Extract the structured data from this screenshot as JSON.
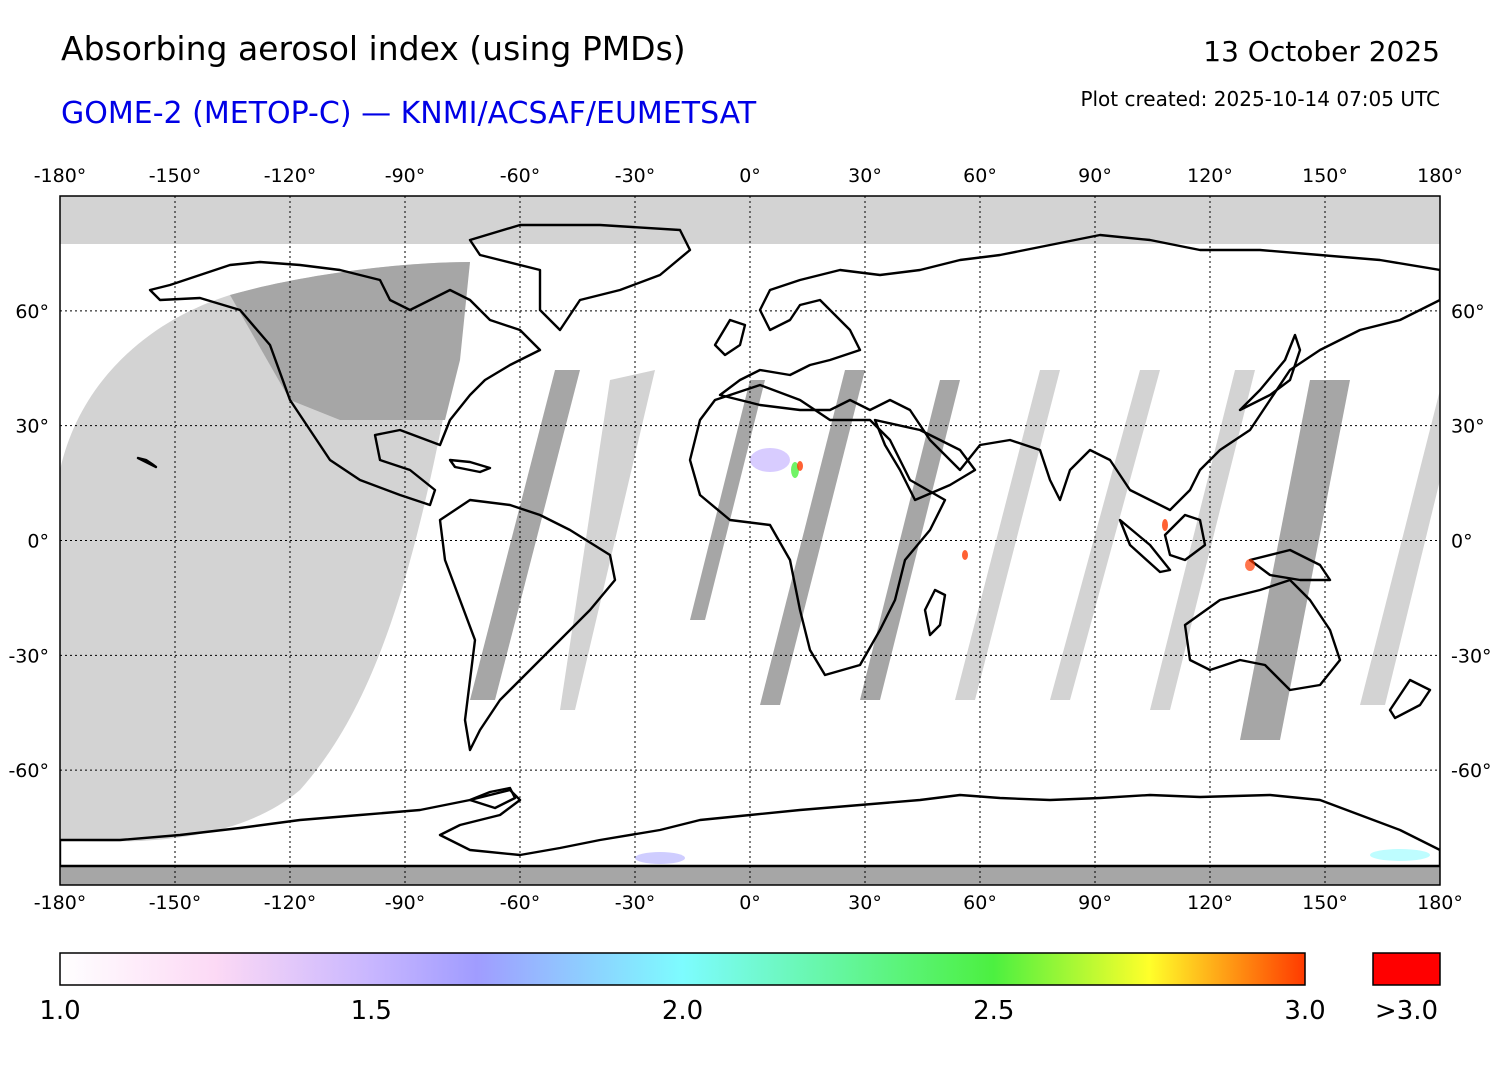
{
  "header": {
    "title": "Absorbing aerosol index (using PMDs)",
    "subtitle": "GOME-2 (METOP-C) — KNMI/ACSAF/EUMETSAT",
    "date": "13 October 2025",
    "created": "Plot created: 2025-10-14 07:05 UTC"
  },
  "map": {
    "projection": "plate-carree",
    "lon_range": [
      -180,
      180
    ],
    "lat_range": [
      -90,
      90
    ],
    "lon_ticks": [
      -180,
      -150,
      -120,
      -90,
      -60,
      -30,
      0,
      30,
      60,
      90,
      120,
      150,
      180
    ],
    "lat_ticks": [
      -60,
      -30,
      0,
      30,
      60
    ],
    "lon_tick_labels": [
      "-180°",
      "-150°",
      "-120°",
      "-90°",
      "-60°",
      "-30°",
      "0°",
      "30°",
      "60°",
      "90°",
      "120°",
      "150°",
      "180°"
    ],
    "lat_tick_labels": [
      "-60°",
      "-30°",
      "0°",
      "30°",
      "60°"
    ],
    "gridlines": true,
    "colors": {
      "no_data_light": "#d3d3d3",
      "no_data_dark": "#a6a6a6",
      "coastline": "#000000"
    }
  },
  "colorbar": {
    "min": 1.0,
    "max": 3.0,
    "tick_values": [
      1.0,
      1.5,
      2.0,
      2.5,
      3.0
    ],
    "tick_labels": [
      "1.0",
      "1.5",
      "2.0",
      "2.5",
      "3.0"
    ],
    "overflow_label": ">3.0",
    "overflow_color": "#ff0000",
    "stops": [
      {
        "value": 1.0,
        "color": "#ffffff"
      },
      {
        "value": 1.25,
        "color": "#fcd9f5"
      },
      {
        "value": 1.5,
        "color": "#c8b6ff"
      },
      {
        "value": 1.67,
        "color": "#a09cff"
      },
      {
        "value": 2.0,
        "color": "#7dfcff"
      },
      {
        "value": 2.5,
        "color": "#4cf040"
      },
      {
        "value": 2.75,
        "color": "#ffff2a"
      },
      {
        "value": 3.0,
        "color": "#ff3a00"
      }
    ]
  }
}
